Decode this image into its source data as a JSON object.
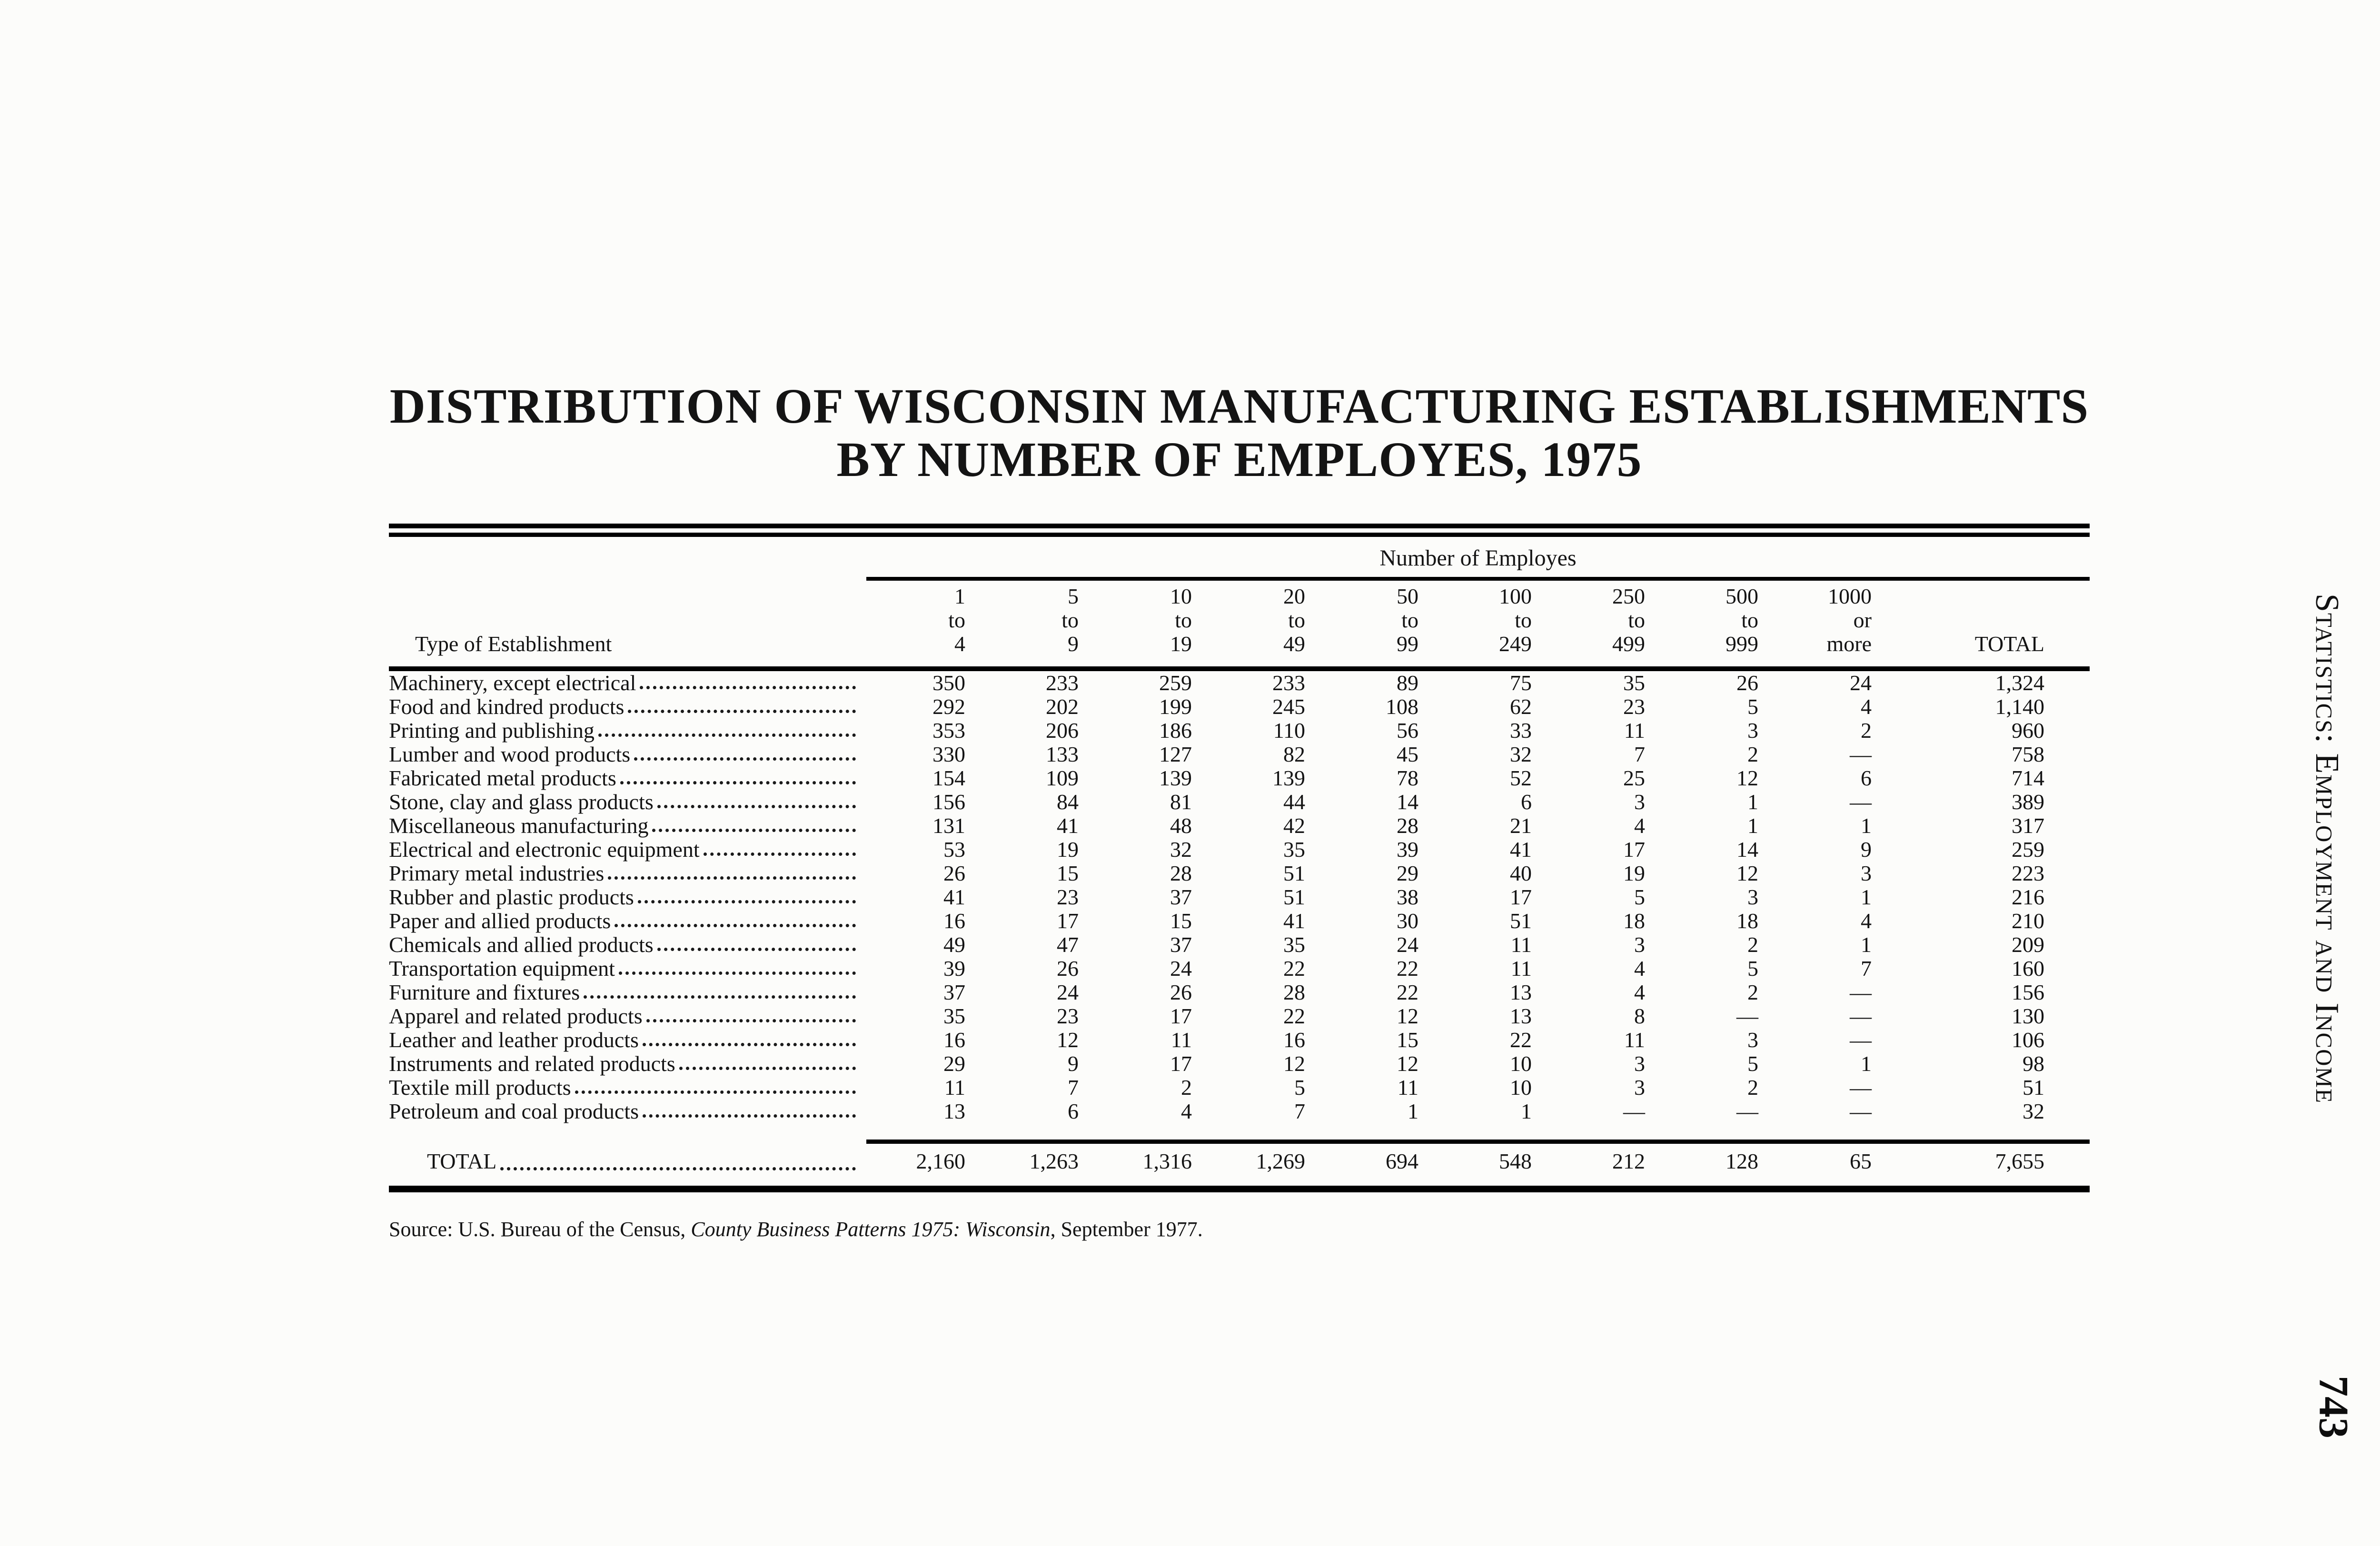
{
  "page": {
    "title_line1": "DISTRIBUTION OF WISCONSIN MANUFACTURING ESTABLISHMENTS",
    "title_line2": "BY NUMBER OF EMPLOYES, 1975",
    "side_label": "Statistics: Employment and Income",
    "page_number": "743",
    "source_prefix": "Source: U.S. Bureau of the Census, ",
    "source_italic": "County Business Patterns 1975: Wisconsin",
    "source_suffix": ", September 1977.",
    "ink_color": "#141414",
    "paper_color": "#fcfcfa"
  },
  "table": {
    "spanner": "Number of Employes",
    "row_header": "Type of Establishment",
    "total_col_label": "TOTAL",
    "columns": [
      {
        "l1": "1",
        "l2": "to",
        "l3": "4"
      },
      {
        "l1": "5",
        "l2": "to",
        "l3": "9"
      },
      {
        "l1": "10",
        "l2": "to",
        "l3": "19"
      },
      {
        "l1": "20",
        "l2": "to",
        "l3": "49"
      },
      {
        "l1": "50",
        "l2": "to",
        "l3": "99"
      },
      {
        "l1": "100",
        "l2": "to",
        "l3": "249"
      },
      {
        "l1": "250",
        "l2": "to",
        "l3": "499"
      },
      {
        "l1": "500",
        "l2": "to",
        "l3": "999"
      },
      {
        "l1": "1000",
        "l2": "or",
        "l3": "more"
      }
    ],
    "rows": [
      {
        "label": "Machinery, except electrical",
        "values": [
          "350",
          "233",
          "259",
          "233",
          "89",
          "75",
          "35",
          "26",
          "24",
          "1,324"
        ]
      },
      {
        "label": "Food and kindred products",
        "values": [
          "292",
          "202",
          "199",
          "245",
          "108",
          "62",
          "23",
          "5",
          "4",
          "1,140"
        ]
      },
      {
        "label": "Printing and publishing",
        "values": [
          "353",
          "206",
          "186",
          "110",
          "56",
          "33",
          "11",
          "3",
          "2",
          "960"
        ]
      },
      {
        "label": "Lumber and wood products",
        "values": [
          "330",
          "133",
          "127",
          "82",
          "45",
          "32",
          "7",
          "2",
          "—",
          "758"
        ]
      },
      {
        "label": "Fabricated metal products",
        "values": [
          "154",
          "109",
          "139",
          "139",
          "78",
          "52",
          "25",
          "12",
          "6",
          "714"
        ]
      },
      {
        "label": "Stone, clay and glass products",
        "values": [
          "156",
          "84",
          "81",
          "44",
          "14",
          "6",
          "3",
          "1",
          "—",
          "389"
        ]
      },
      {
        "label": "Miscellaneous manufacturing",
        "values": [
          "131",
          "41",
          "48",
          "42",
          "28",
          "21",
          "4",
          "1",
          "1",
          "317"
        ]
      },
      {
        "label": "Electrical and electronic equipment",
        "values": [
          "53",
          "19",
          "32",
          "35",
          "39",
          "41",
          "17",
          "14",
          "9",
          "259"
        ]
      },
      {
        "label": "Primary metal industries",
        "values": [
          "26",
          "15",
          "28",
          "51",
          "29",
          "40",
          "19",
          "12",
          "3",
          "223"
        ]
      },
      {
        "label": "Rubber and plastic products",
        "values": [
          "41",
          "23",
          "37",
          "51",
          "38",
          "17",
          "5",
          "3",
          "1",
          "216"
        ]
      },
      {
        "label": "Paper and allied products",
        "values": [
          "16",
          "17",
          "15",
          "41",
          "30",
          "51",
          "18",
          "18",
          "4",
          "210"
        ]
      },
      {
        "label": "Chemicals and allied products",
        "values": [
          "49",
          "47",
          "37",
          "35",
          "24",
          "11",
          "3",
          "2",
          "1",
          "209"
        ]
      },
      {
        "label": "Transportation equipment",
        "values": [
          "39",
          "26",
          "24",
          "22",
          "22",
          "11",
          "4",
          "5",
          "7",
          "160"
        ]
      },
      {
        "label": "Furniture and fixtures",
        "values": [
          "37",
          "24",
          "26",
          "28",
          "22",
          "13",
          "4",
          "2",
          "—",
          "156"
        ]
      },
      {
        "label": "Apparel and related products",
        "values": [
          "35",
          "23",
          "17",
          "22",
          "12",
          "13",
          "8",
          "—",
          "—",
          "130"
        ]
      },
      {
        "label": "Leather and leather products",
        "values": [
          "16",
          "12",
          "11",
          "16",
          "15",
          "22",
          "11",
          "3",
          "—",
          "106"
        ]
      },
      {
        "label": "Instruments and related products",
        "values": [
          "29",
          "9",
          "17",
          "12",
          "12",
          "10",
          "3",
          "5",
          "1",
          "98"
        ]
      },
      {
        "label": "Textile mill products",
        "values": [
          "11",
          "7",
          "2",
          "5",
          "11",
          "10",
          "3",
          "2",
          "—",
          "51"
        ]
      },
      {
        "label": "Petroleum and coal products",
        "values": [
          "13",
          "6",
          "4",
          "7",
          "1",
          "1",
          "—",
          "—",
          "—",
          "32"
        ]
      }
    ],
    "total_row": {
      "label": "TOTAL",
      "values": [
        "2,160",
        "1,263",
        "1,316",
        "1,269",
        "694",
        "548",
        "212",
        "128",
        "65",
        "7,655"
      ]
    }
  }
}
